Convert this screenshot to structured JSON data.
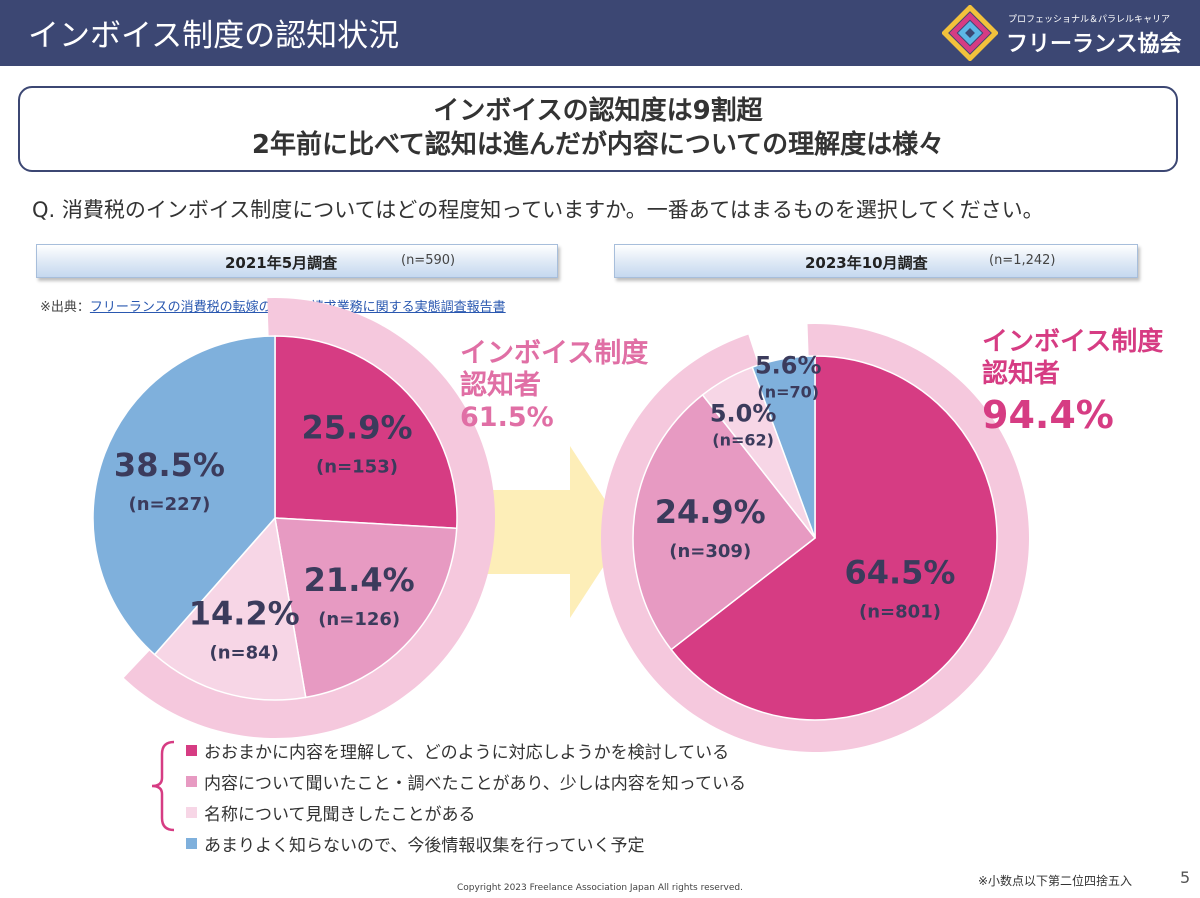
{
  "header": {
    "title": "インボイス制度の認知状況",
    "logo_sub": "プロフェッショナル＆パラレルキャリア",
    "logo_main": "フリーランス協会"
  },
  "headline": {
    "line1": "インボイスの認知度は9割超",
    "line2": "2年前に比べて認知は進んだが内容についての理解度は様々"
  },
  "question": "Q. 消費税のインボイス制度についてはどの程度知っていますか。一番あてはまるものを選択してください。",
  "source": {
    "prefix": "※出典：",
    "link": "フリーランスの消費税の転嫁の実態や請求業務に関する実態調査報告書"
  },
  "colors": {
    "header_bg": "#3c4773",
    "understand": "#d63c83",
    "heard_details": "#e79ac2",
    "name_only": "#f7d6e6",
    "not_much": "#7fb0dc",
    "ring": "#f5c8dd",
    "arrow": "#fdeeb8",
    "callout": "#e06fa5",
    "callout_strong": "#d63c83",
    "value_text": "#3b3b5c"
  },
  "callouts": {
    "left": {
      "line1": "インボイス制度",
      "line2": "認知者",
      "value": "61.5%"
    },
    "right": {
      "line1": "インボイス制度",
      "line2": "認知者",
      "value": "94.4%"
    }
  },
  "chart_data": [
    {
      "type": "pie",
      "title": "2021年5月調査",
      "n_label": "(n=590)",
      "categories": [
        "おおまかに内容を理解して、どのように対応しようかを検討している",
        "内容について聞いたこと・調べたことがあり、少しは内容を知っている",
        "名称について見聞きしたことがある",
        "あまりよく知らないので、今後情報収集を行っていく予定"
      ],
      "values": [
        25.9,
        21.4,
        14.2,
        38.5
      ],
      "labels": [
        "25.9%",
        "21.4%",
        "14.2%",
        "38.5%"
      ],
      "counts": [
        "(n=153)",
        "(n=126)",
        "(n=84)",
        "(n=227)"
      ]
    },
    {
      "type": "pie",
      "title": "2023年10月調査",
      "n_label": "(n=1,242)",
      "categories": [
        "おおまかに内容を理解して、どのように対応しようかを検討している",
        "内容について聞いたこと・調べたことがあり、少しは内容を知っている",
        "名称について見聞きしたことがある",
        "あまりよく知らないので、今後情報収集を行っていく予定"
      ],
      "values": [
        64.5,
        24.9,
        5.0,
        5.6
      ],
      "labels": [
        "64.5%",
        "24.9%",
        "5.0%",
        "5.6%"
      ],
      "counts": [
        "(n=801)",
        "(n=309)",
        "(n=62)",
        "(n=70)"
      ]
    }
  ],
  "legend": [
    "おおまかに内容を理解して、どのように対応しようかを検討している",
    "内容について聞いたこと・調べたことがあり、少しは内容を知っている",
    "名称について見聞きしたことがある",
    "あまりよく知らないので、今後情報収集を行っていく予定"
  ],
  "footnote": "※小数点以下第二位四捨五入",
  "page_number": "5",
  "copyright": "Copyright 2023 Freelance Association Japan  All rights reserved."
}
